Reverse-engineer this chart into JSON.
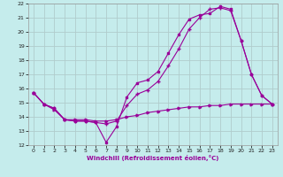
{
  "title": "",
  "xlabel": "Windchill (Refroidissement éolien,°C)",
  "xlim": [
    -0.5,
    23.5
  ],
  "ylim": [
    12,
    22
  ],
  "yticks": [
    12,
    13,
    14,
    15,
    16,
    17,
    18,
    19,
    20,
    21,
    22
  ],
  "xticks": [
    0,
    1,
    2,
    3,
    4,
    5,
    6,
    7,
    8,
    9,
    10,
    11,
    12,
    13,
    14,
    15,
    16,
    17,
    18,
    19,
    20,
    21,
    22,
    23
  ],
  "bg_color": "#c5ecec",
  "grid_color": "#b0cccc",
  "line_color": "#990099",
  "line1_x": [
    0,
    1,
    2,
    3,
    4,
    5,
    6,
    7,
    8,
    9,
    10,
    11,
    12,
    13,
    14,
    15,
    16,
    17,
    18,
    19,
    20,
    21,
    22,
    23
  ],
  "line1_y": [
    15.7,
    14.9,
    14.6,
    13.8,
    13.7,
    13.7,
    13.6,
    12.2,
    13.3,
    15.4,
    16.4,
    16.6,
    17.2,
    18.5,
    19.8,
    20.9,
    21.2,
    21.3,
    21.8,
    21.6,
    19.4,
    17.0,
    15.5,
    14.9
  ],
  "line2_x": [
    0,
    1,
    2,
    3,
    4,
    5,
    6,
    7,
    8,
    9,
    10,
    11,
    12,
    13,
    14,
    15,
    16,
    17,
    18,
    19,
    20,
    21,
    22,
    23
  ],
  "line2_y": [
    15.7,
    14.9,
    14.5,
    13.8,
    13.8,
    13.8,
    13.7,
    13.7,
    13.8,
    14.0,
    14.1,
    14.3,
    14.4,
    14.5,
    14.6,
    14.7,
    14.7,
    14.8,
    14.8,
    14.9,
    14.9,
    14.9,
    14.9,
    14.9
  ],
  "line3_x": [
    0,
    1,
    2,
    3,
    4,
    5,
    6,
    7,
    8,
    9,
    10,
    11,
    12,
    13,
    14,
    15,
    16,
    17,
    18,
    19,
    20,
    21,
    22,
    23
  ],
  "line3_y": [
    15.7,
    14.9,
    14.6,
    13.8,
    13.7,
    13.7,
    13.6,
    13.5,
    13.7,
    14.8,
    15.6,
    15.9,
    16.5,
    17.6,
    18.8,
    20.2,
    21.0,
    21.6,
    21.7,
    21.5,
    19.4,
    17.0,
    15.5,
    14.9
  ]
}
